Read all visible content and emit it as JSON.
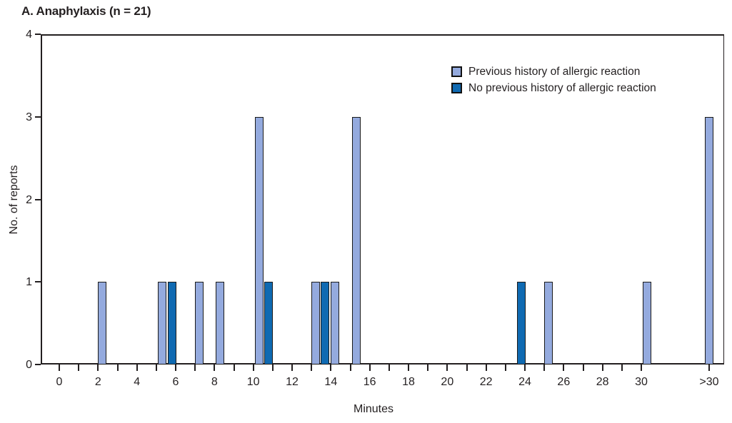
{
  "chart_data": {
    "type": "bar",
    "title": "A. Anaphylaxis (n = 21)",
    "xlabel": "Minutes",
    "ylabel": "No. of reports",
    "ylim": [
      0,
      4
    ],
    "yticks": [
      "0",
      "1",
      "2",
      "3",
      "4"
    ],
    "xtick_labels": [
      "0",
      "2",
      "4",
      "6",
      "8",
      "10",
      "12",
      "14",
      "16",
      "18",
      "20",
      "22",
      "24",
      "26",
      "28",
      "30",
      ">30"
    ],
    "x_minor_tick_minutes_range": [
      0,
      30
    ],
    "x_minor_ticks_every": 1,
    "grid": false,
    "legend_position": "top-right",
    "axis_color": "#231f20",
    "series": [
      {
        "name": "Previous history of allergic reaction",
        "color": "#94aade",
        "bars": [
          {
            "minutes": 2.2,
            "reports": 1
          },
          {
            "minutes": 5.3,
            "reports": 1
          },
          {
            "minutes": 7.2,
            "reports": 1
          },
          {
            "minutes": 8.3,
            "reports": 1
          },
          {
            "minutes": 10.3,
            "reports": 3
          },
          {
            "minutes": 13.2,
            "reports": 1
          },
          {
            "minutes": 14.2,
            "reports": 1
          },
          {
            "minutes": 15.3,
            "reports": 3
          },
          {
            "minutes": 25.2,
            "reports": 1
          },
          {
            "minutes": 30.3,
            "reports": 1
          },
          {
            "minutes": ">30",
            "reports": 3
          }
        ]
      },
      {
        "name": "No previous history of allergic reaction",
        "color": "#0f6ab2",
        "bars": [
          {
            "minutes": 5.8,
            "reports": 1
          },
          {
            "minutes": 10.8,
            "reports": 1
          },
          {
            "minutes": 13.7,
            "reports": 1
          },
          {
            "minutes": 23.8,
            "reports": 1
          }
        ]
      }
    ]
  }
}
